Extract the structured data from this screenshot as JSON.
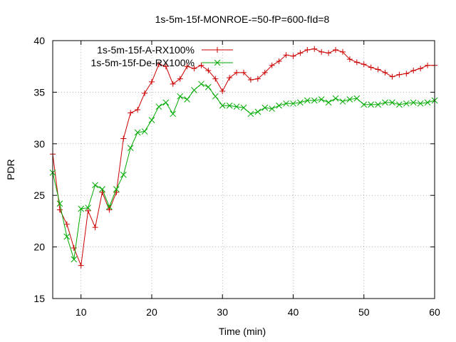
{
  "chart_data": {
    "type": "line",
    "title": "1s-5m-15f-MONROE-=50-fP=600-fId=8",
    "xlabel": "Time (min)",
    "ylabel": "PDR",
    "xlim": [
      6,
      60
    ],
    "ylim": [
      15,
      40
    ],
    "xticks": [
      10,
      20,
      30,
      40,
      50,
      60
    ],
    "yticks": [
      15,
      20,
      25,
      30,
      35,
      40
    ],
    "grid": true,
    "legend_position": "top-left",
    "series": [
      {
        "name": "1s-5m-15f-A-RX100%",
        "color": "#cc0000",
        "marker": "plus",
        "x": [
          6,
          7,
          8,
          9,
          10,
          11,
          12,
          13,
          14,
          15,
          16,
          17,
          18,
          19,
          20,
          21,
          22,
          23,
          24,
          25,
          26,
          27,
          28,
          29,
          30,
          31,
          32,
          33,
          34,
          35,
          36,
          37,
          38,
          39,
          40,
          41,
          42,
          43,
          44,
          45,
          46,
          47,
          48,
          49,
          50,
          51,
          52,
          53,
          54,
          55,
          56,
          57,
          58,
          59,
          60
        ],
        "y": [
          29.0,
          23.6,
          22.2,
          19.9,
          18.2,
          23.5,
          21.9,
          25.3,
          23.6,
          25.3,
          30.5,
          33.0,
          33.3,
          34.9,
          36.0,
          37.7,
          37.5,
          35.8,
          36.3,
          37.5,
          37.3,
          37.6,
          37.1,
          36.3,
          35.1,
          36.4,
          36.9,
          36.9,
          36.2,
          36.3,
          36.9,
          37.6,
          38.0,
          38.6,
          38.5,
          38.8,
          39.1,
          39.2,
          38.9,
          38.8,
          39.1,
          38.9,
          38.2,
          37.9,
          37.7,
          37.4,
          37.2,
          36.9,
          36.5,
          36.7,
          36.8,
          37.1,
          37.3,
          37.6,
          37.6
        ]
      },
      {
        "name": "1s-5m-15f-De-RX100%",
        "color": "#00aa00",
        "marker": "cross",
        "x": [
          6,
          7,
          8,
          9,
          10,
          11,
          12,
          13,
          14,
          15,
          16,
          17,
          18,
          19,
          20,
          21,
          22,
          23,
          24,
          25,
          26,
          27,
          28,
          29,
          30,
          31,
          32,
          33,
          34,
          35,
          36,
          37,
          38,
          39,
          40,
          41,
          42,
          43,
          44,
          45,
          46,
          47,
          48,
          49,
          50,
          51,
          52,
          53,
          54,
          55,
          56,
          57,
          58,
          59,
          60
        ],
        "y": [
          27.2,
          24.2,
          21.0,
          18.8,
          23.7,
          23.8,
          26.0,
          25.6,
          23.9,
          25.6,
          27.0,
          29.6,
          31.1,
          31.2,
          32.3,
          33.6,
          34.0,
          32.9,
          34.6,
          34.3,
          35.2,
          35.8,
          35.5,
          34.6,
          33.7,
          33.7,
          33.6,
          33.5,
          32.9,
          33.1,
          33.5,
          33.4,
          33.7,
          33.9,
          33.9,
          34.0,
          34.2,
          34.2,
          34.3,
          34.0,
          34.4,
          34.1,
          34.3,
          34.4,
          33.8,
          33.8,
          33.8,
          34.0,
          34.0,
          33.8,
          33.9,
          34.0,
          33.9,
          34.0,
          34.2
        ]
      }
    ]
  }
}
